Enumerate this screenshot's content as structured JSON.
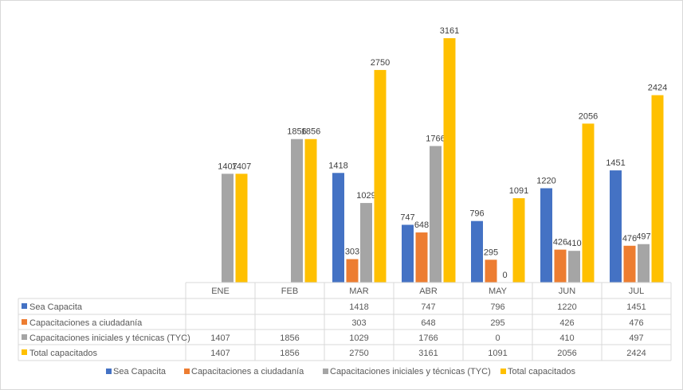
{
  "chart_data": {
    "type": "bar",
    "title": "",
    "xlabel": "",
    "ylabel": "",
    "ylim": [
      0,
      3161
    ],
    "grid": false,
    "legend_placement": "bottom",
    "categories": [
      "ENE",
      "FEB",
      "MAR",
      "ABR",
      "MAY",
      "JUN",
      "JUL"
    ],
    "series": [
      {
        "name": "Sea Capacita",
        "color": "#4472c4",
        "values": [
          null,
          null,
          1418,
          747,
          796,
          1220,
          1451
        ]
      },
      {
        "name": "Capacitaciones a ciudadanía",
        "color": "#ed7d31",
        "values": [
          null,
          null,
          303,
          648,
          295,
          426,
          476
        ]
      },
      {
        "name": "Capacitaciones iniciales y técnicas (TYC)",
        "color": "#a5a5a5",
        "values": [
          1407,
          1856,
          1029,
          1766,
          0,
          410,
          497
        ]
      },
      {
        "name": "Total capacitados",
        "color": "#ffc000",
        "values": [
          1407,
          1856,
          2750,
          3161,
          1091,
          2056,
          2424
        ]
      }
    ],
    "data_table": true
  }
}
